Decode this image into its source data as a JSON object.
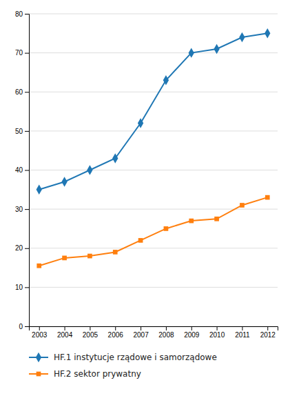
{
  "chart_data": {
    "type": "line",
    "x": [
      2003,
      2004,
      2005,
      2006,
      2007,
      2008,
      2009,
      2010,
      2011,
      2012
    ],
    "series": [
      {
        "name": "HF.1 instytucje rządowe i samorządowe",
        "marker": "diamond",
        "values": [
          35,
          37,
          40,
          43,
          52,
          63,
          70,
          71,
          74,
          75
        ]
      },
      {
        "name": "HF.2 sektor prywatny",
        "marker": "square",
        "values": [
          15.5,
          17.5,
          18,
          19,
          22,
          25,
          27,
          27.5,
          31,
          33
        ]
      }
    ],
    "xlim": [
      2002.6,
      2012.4
    ],
    "xticks": [
      2003,
      2004,
      2005,
      2006,
      2007,
      2008,
      2009,
      2010,
      2011,
      2012
    ],
    "ylim": [
      0,
      80
    ],
    "yticks": [
      0,
      10,
      20,
      30,
      40,
      50,
      60,
      70,
      80
    ],
    "grid": true,
    "legend": "bottom"
  }
}
